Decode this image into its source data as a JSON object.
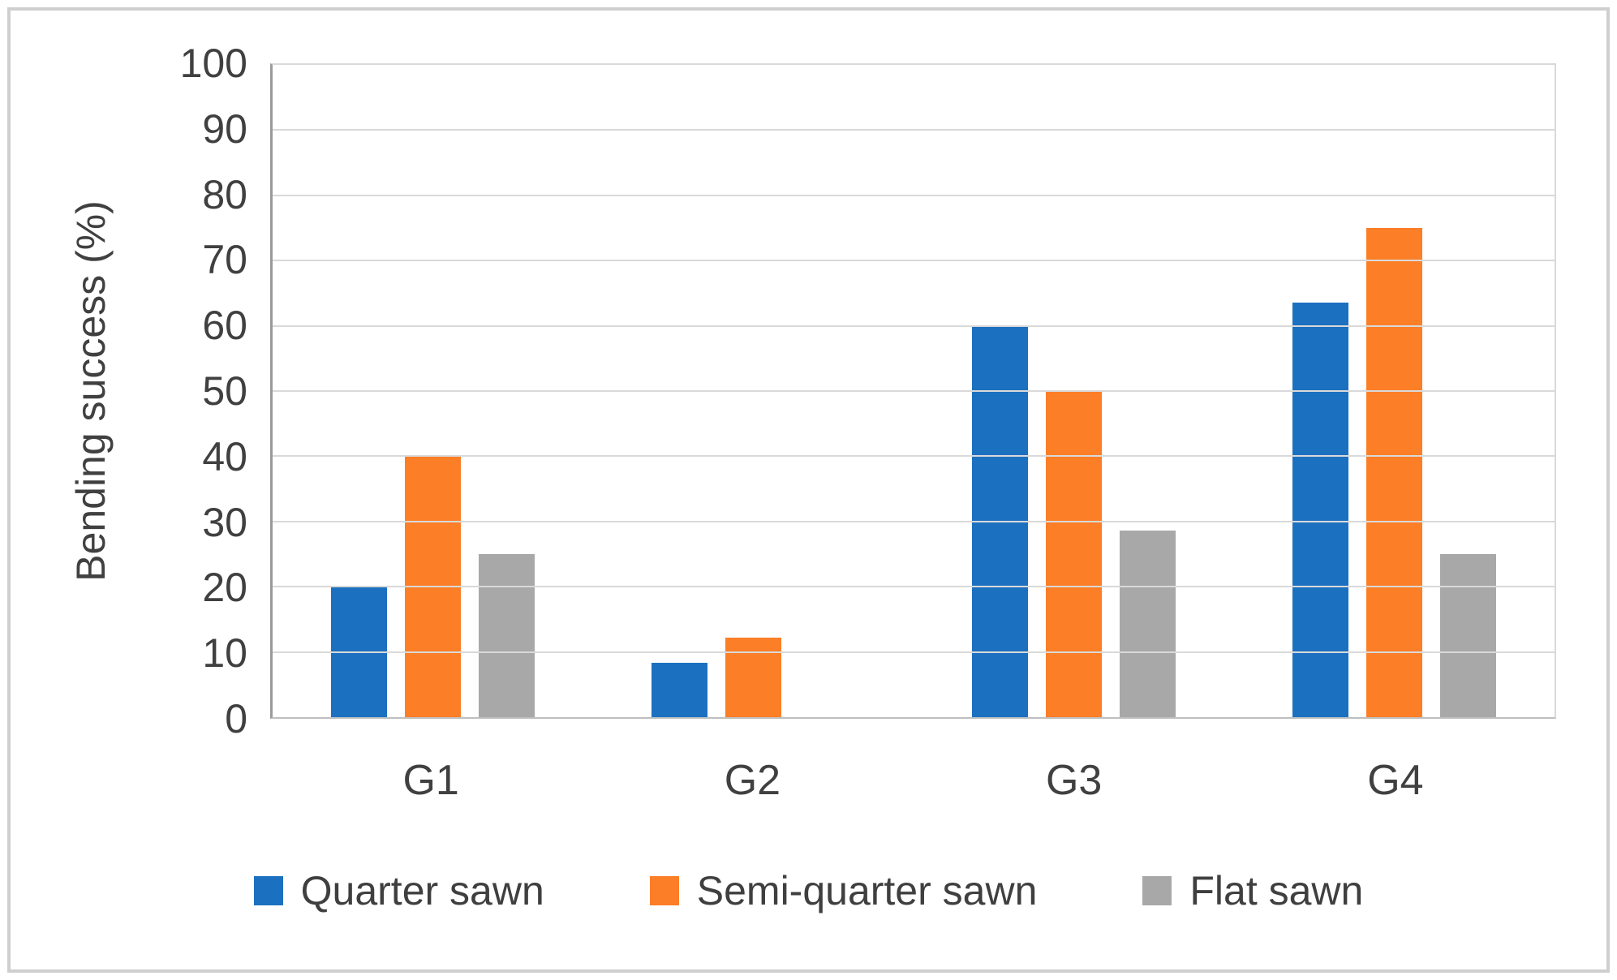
{
  "chart_data": {
    "type": "bar",
    "title": "",
    "ylabel": "Bending success (%)",
    "xlabel": "",
    "categories": [
      "G1",
      "G2",
      "G3",
      "G4"
    ],
    "series": [
      {
        "name": "Quarter sawn",
        "color": "#1c70c0",
        "values": [
          20,
          8.3,
          60,
          63.5
        ]
      },
      {
        "name": "Semi-quarter sawn",
        "color": "#fc7e27",
        "values": [
          40,
          12.2,
          50,
          75
        ]
      },
      {
        "name": "Flat sawn",
        "color": "#a8a8a8",
        "values": [
          25,
          0,
          28.6,
          25
        ]
      }
    ],
    "ylim": [
      0,
      100
    ],
    "yticks": [
      0,
      10,
      20,
      30,
      40,
      50,
      60,
      70,
      80,
      90,
      100
    ],
    "grid": true,
    "legend_position": "bottom"
  }
}
